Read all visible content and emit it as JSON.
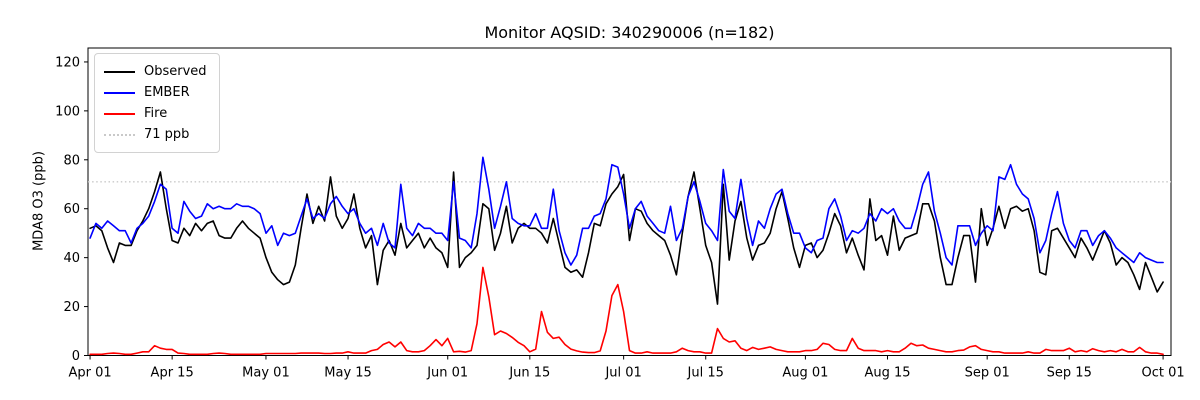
{
  "title": "Monitor AQSID: 340290006 (n=182)",
  "ylabel": "MDA8 O3 (ppb)",
  "legend": {
    "items": [
      {
        "label": "Observed",
        "color": "#000000",
        "style": "solid"
      },
      {
        "label": "EMBER",
        "color": "#0000ff",
        "style": "solid"
      },
      {
        "label": "Fire",
        "color": "#ff0000",
        "style": "solid"
      },
      {
        "label": "71 ppb",
        "color": "#c9c9c9",
        "style": "dotted"
      }
    ]
  },
  "chart_data": {
    "type": "line",
    "title": "Monitor AQSID: 340290006 (n=182)",
    "xlabel": "",
    "ylabel": "MDA8 O3 (ppb)",
    "x_unit": "days since Apr 01 (daily values, Apr 01 - Oct 01)",
    "x_tick_days": [
      0,
      14,
      30,
      44,
      61,
      75,
      91,
      105,
      122,
      136,
      153,
      167,
      183
    ],
    "x_tick_labels": [
      "Apr 01",
      "Apr 15",
      "May 01",
      "May 15",
      "Jun 01",
      "Jun 15",
      "Jul 01",
      "Jul 15",
      "Aug 01",
      "Aug 15",
      "Sep 01",
      "Sep 15",
      "Oct 01"
    ],
    "y_ticks": [
      0,
      20,
      40,
      60,
      80,
      100,
      120
    ],
    "ylim": [
      0,
      125.7
    ],
    "xlim_days": [
      -0.35,
      184.35
    ],
    "grid": false,
    "legend_position": "upper left",
    "threshold": {
      "label": "71 ppb",
      "value": 71,
      "color": "#c9c9c9",
      "style": "dotted"
    },
    "series": [
      {
        "name": "Observed",
        "color": "#000000",
        "values": [
          52,
          53,
          51,
          44,
          38,
          46,
          45,
          45,
          51,
          55,
          60,
          67,
          75,
          60,
          47,
          46,
          52,
          49,
          54,
          51,
          54,
          55,
          49,
          48,
          48,
          52,
          55,
          52,
          50,
          48,
          40,
          34,
          31,
          29,
          30,
          37,
          52,
          66,
          54,
          61,
          55,
          73,
          57,
          52,
          56,
          66,
          52,
          44,
          49,
          29,
          43,
          47,
          41,
          54,
          44,
          47,
          50,
          44,
          48,
          44,
          42,
          36,
          75,
          36,
          40,
          42,
          45,
          62,
          60,
          43,
          50,
          61,
          46,
          52,
          54,
          52,
          52,
          50,
          46,
          56,
          46,
          36,
          34,
          35,
          32,
          42,
          54,
          53,
          62,
          66,
          69,
          74,
          47,
          60,
          59,
          54,
          51,
          49,
          47,
          41,
          33,
          50,
          65,
          75,
          60,
          45,
          38,
          21,
          70,
          39,
          55,
          63,
          48,
          39,
          45,
          46,
          50,
          60,
          67,
          56,
          44,
          36,
          45,
          46,
          40,
          43,
          50,
          58,
          53,
          42,
          48,
          41,
          35,
          64,
          47,
          49,
          41,
          57,
          43,
          48,
          49,
          50,
          62,
          62,
          55,
          40,
          29,
          29,
          40,
          49,
          49,
          30,
          60,
          45,
          52,
          61,
          52,
          60,
          61,
          59,
          60,
          51,
          34,
          33,
          51,
          52,
          48,
          44,
          40,
          48,
          44,
          39,
          45,
          51,
          46,
          37,
          40,
          38,
          33,
          27,
          38,
          32,
          26,
          30
        ]
      },
      {
        "name": "EMBER",
        "color": "#0000ff",
        "values": [
          48,
          54,
          52,
          55,
          53,
          51,
          51,
          46,
          52,
          54,
          57,
          63,
          70,
          68,
          52,
          50,
          63,
          59,
          56,
          57,
          62,
          60,
          61,
          60,
          60,
          62,
          61,
          61,
          60,
          58,
          50,
          53,
          45,
          50,
          49,
          50,
          57,
          64,
          56,
          58,
          56,
          62,
          65,
          61,
          58,
          60,
          54,
          50,
          52,
          45,
          54,
          46,
          44,
          70,
          52,
          49,
          54,
          52,
          52,
          50,
          50,
          47,
          71,
          48,
          47,
          44,
          58,
          81,
          68,
          52,
          61,
          71,
          56,
          54,
          53,
          53,
          58,
          52,
          52,
          68,
          51,
          42,
          37,
          41,
          52,
          52,
          57,
          58,
          64,
          78,
          77,
          66,
          52,
          60,
          63,
          57,
          54,
          51,
          50,
          61,
          47,
          52,
          65,
          71,
          63,
          54,
          51,
          47,
          76,
          59,
          56,
          72,
          56,
          45,
          55,
          52,
          60,
          66,
          68,
          58,
          50,
          50,
          44,
          42,
          47,
          48,
          60,
          64,
          57,
          47,
          51,
          50,
          52,
          58,
          55,
          60,
          58,
          60,
          55,
          52,
          52,
          60,
          70,
          75,
          59,
          50,
          40,
          37,
          53,
          53,
          53,
          45,
          50,
          53,
          51,
          73,
          72,
          78,
          70,
          66,
          64,
          56,
          42,
          47,
          58,
          67,
          54,
          47,
          44,
          51,
          51,
          45,
          49,
          51,
          48,
          44,
          42,
          40,
          38,
          42,
          40,
          39,
          38,
          38
        ]
      },
      {
        "name": "Fire",
        "color": "#ff0000",
        "values": [
          0.5,
          0.5,
          0.5,
          0.8,
          1,
          0.8,
          0.5,
          0.5,
          1,
          1.5,
          1.5,
          4,
          3,
          2.5,
          2.5,
          1,
          0.8,
          0.5,
          0.5,
          0.5,
          0.5,
          0.8,
          1,
          0.8,
          0.5,
          0.5,
          0.5,
          0.5,
          0.5,
          0.5,
          0.8,
          0.8,
          0.8,
          0.8,
          0.8,
          0.8,
          1,
          1,
          1,
          1,
          0.8,
          0.8,
          1,
          1,
          1.5,
          1,
          1,
          1,
          2,
          2.5,
          4.5,
          5.5,
          3.5,
          5.5,
          2,
          1.5,
          1.5,
          2,
          4,
          6.5,
          4,
          7,
          1.5,
          1.7,
          1.4,
          2,
          13,
          36,
          24,
          8.5,
          10,
          9,
          7.4,
          5.4,
          4,
          1.5,
          2.6,
          18,
          9.5,
          7,
          7.5,
          4.5,
          2.6,
          1.9,
          1.4,
          1.2,
          1.2,
          1.9,
          10,
          24.5,
          29,
          18,
          2,
          1,
          1,
          1.5,
          1,
          1,
          1,
          1,
          1.5,
          3,
          2,
          1.5,
          1.5,
          1,
          1,
          11,
          7,
          5.5,
          6,
          3,
          2,
          3.3,
          2.5,
          3,
          3.5,
          2.5,
          2,
          1.5,
          1.5,
          1.5,
          2,
          2,
          2.5,
          5,
          4.5,
          2.5,
          2,
          2,
          7,
          3,
          2,
          2,
          2,
          1.5,
          2,
          1.5,
          1.5,
          3,
          5,
          4,
          4.3,
          3,
          2.5,
          2,
          1.5,
          1.5,
          2,
          2.2,
          3.5,
          4,
          2.5,
          2,
          1.5,
          1.5,
          1,
          1,
          1,
          1,
          1.5,
          1,
          1,
          2.5,
          2,
          2,
          2,
          3,
          1.5,
          2,
          1.5,
          2.8,
          2,
          1.5,
          2,
          1.5,
          2.5,
          1.5,
          1.5,
          3.3,
          1.5,
          1,
          1,
          0.5
        ]
      }
    ]
  }
}
